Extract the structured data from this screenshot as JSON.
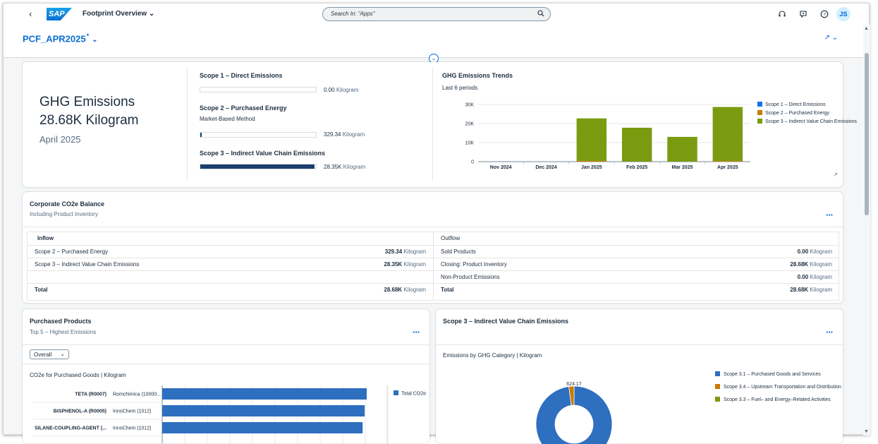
{
  "shell": {
    "app_title": "Footprint Overview",
    "logo_text": "SAP",
    "search_placeholder": "Search In: \"Apps\"",
    "user_initials": "JS"
  },
  "page": {
    "variant": "PCF_APR2025",
    "variant_mark": "*"
  },
  "kpi": {
    "title": "GHG Emissions",
    "value": "28.68K Kilogram",
    "period": "April 2025"
  },
  "scopes": {
    "scope1": {
      "title": "Scope 1 – Direct Emissions",
      "value": "0.00",
      "unit": "Kilogram",
      "share": 0.0
    },
    "scope2": {
      "title": "Scope 2 – Purchased Energy",
      "method": "Market-Based Method",
      "value": "329.34",
      "unit": "Kilogram",
      "share": 0.0115
    },
    "scope3": {
      "title": "Scope 3 – Indirect Value Chain Emissions",
      "value": "28.35K",
      "unit": "Kilogram",
      "share": 0.9885
    }
  },
  "trend_chart": {
    "title": "GHG Emissions Trends",
    "subtitle": "Last 6 periods",
    "chart_data": {
      "type": "bar",
      "stacked": true,
      "categories": [
        "Nov 2024",
        "Dec 2024",
        "Jan 2025",
        "Feb 2025",
        "Mar 2025",
        "Apr 2025"
      ],
      "series": [
        {
          "name": "Scope 1 – Direct Emissions",
          "color": "#1473e6",
          "values": [
            0,
            0,
            0,
            0,
            0,
            0
          ]
        },
        {
          "name": "Scope 2 – Purchased Energy",
          "color": "#c87b00",
          "values": [
            0,
            0,
            400,
            0,
            0,
            330
          ]
        },
        {
          "name": "Scope 3 – Indirect Value Chain Emissions",
          "color": "#7a9b0f",
          "values": [
            0,
            0,
            22300,
            17800,
            13000,
            28350
          ]
        }
      ],
      "yticks": [
        "0",
        "10K",
        "20K",
        "30K"
      ],
      "ylim": [
        0,
        30000
      ],
      "legend": "right"
    }
  },
  "balance": {
    "title": "Corporate CO2e Balance",
    "subtitle": "Including Product Inventory",
    "inflow_header": "Inflow",
    "outflow_header": "Outflow",
    "inflow": [
      {
        "label": "Scope 2 – Purchased Energy",
        "value": "329.34",
        "unit": "Kilogram"
      },
      {
        "label": "Scope 3 – Indirect Value Chain Emissions",
        "value": "28.35K",
        "unit": "Kilogram"
      },
      {
        "label": "",
        "value": "",
        "unit": ""
      }
    ],
    "outflow": [
      {
        "label": "Sold Products",
        "value": "0.00",
        "unit": "Kilogram"
      },
      {
        "label": "Closing: Product Inventory",
        "value": "28.68K",
        "unit": "Kilogram"
      },
      {
        "label": "Non-Product Emissions",
        "value": "0.00",
        "unit": "Kilogram"
      }
    ],
    "total_label": "Total",
    "inflow_total": "28.68K",
    "outflow_total": "28.68K",
    "unit": "Kilogram"
  },
  "purchased": {
    "title": "Purchased Products",
    "subtitle": "Top 5 – Highest Emissions",
    "select_value": "Overall",
    "chart_title": "CO2e for Purchased Goods | Kilogram",
    "legend_label": "Total CO2e",
    "color": "#2e6fbf",
    "chart_data": {
      "type": "bar",
      "orientation": "horizontal",
      "categories": [
        "TETA (R0007)",
        "BISPHENOL-A (R0005)",
        "SILANE-COUPLING-AGENT (..."
      ],
      "suppliers": [
        "Romchimica (10000...",
        "InnoChem (1012)",
        "InnoChem (1012)"
      ],
      "values": [
        1.0,
        0.99,
        0.98
      ]
    }
  },
  "scope3card": {
    "title": "Scope 3 – Indirect Value Chain Emissions",
    "chart_title": "Emissions by GHG Category | Kilogram",
    "data_label": "624.17",
    "chart_data": {
      "type": "pie",
      "categories": [
        "Scope 3.1 – Purchased Goods and Services",
        "Scope 3.4 – Upstream Transportation and Distribution",
        "Scope 3.3 – Fuel– and Energy–Related Activities"
      ],
      "colors": [
        "#2e6fbf",
        "#c87b00",
        "#7a9b0f"
      ],
      "values": [
        27725.83,
        624.17,
        0
      ]
    }
  }
}
